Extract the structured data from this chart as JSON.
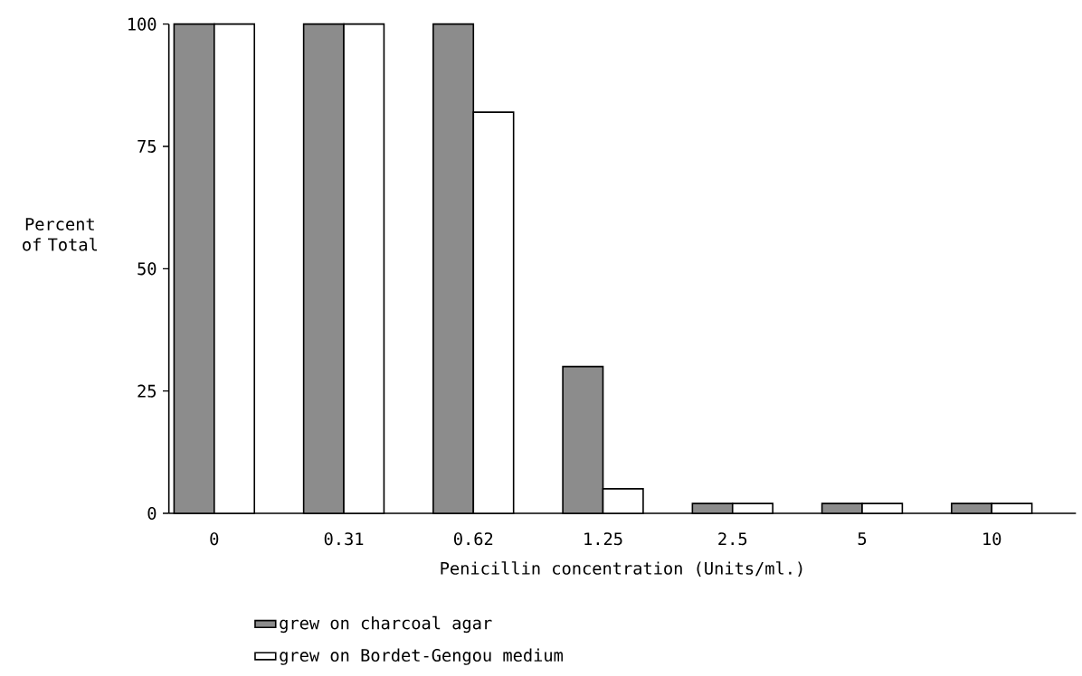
{
  "chart_data": {
    "type": "bar",
    "categories": [
      "0",
      "0.31",
      "0.62",
      "1.25",
      "2.5",
      "5",
      "10"
    ],
    "xlabel": "Penicillin concentration (Units/ml.)",
    "ylabel": "Percent of Total",
    "series": [
      {
        "name": "grew on charcoal agar",
        "color": "#8c8c8c",
        "values": [
          100,
          100,
          100,
          30,
          2,
          2,
          2
        ]
      },
      {
        "name": "grew on Bordet-Gengou medium",
        "color": "#ffffff",
        "values": [
          100,
          100,
          82,
          5,
          2,
          2,
          2
        ]
      }
    ],
    "ylim": [
      0,
      100
    ],
    "yticks": [
      0,
      25,
      50,
      75,
      100
    ],
    "grid": false,
    "legend": "bottom left"
  }
}
